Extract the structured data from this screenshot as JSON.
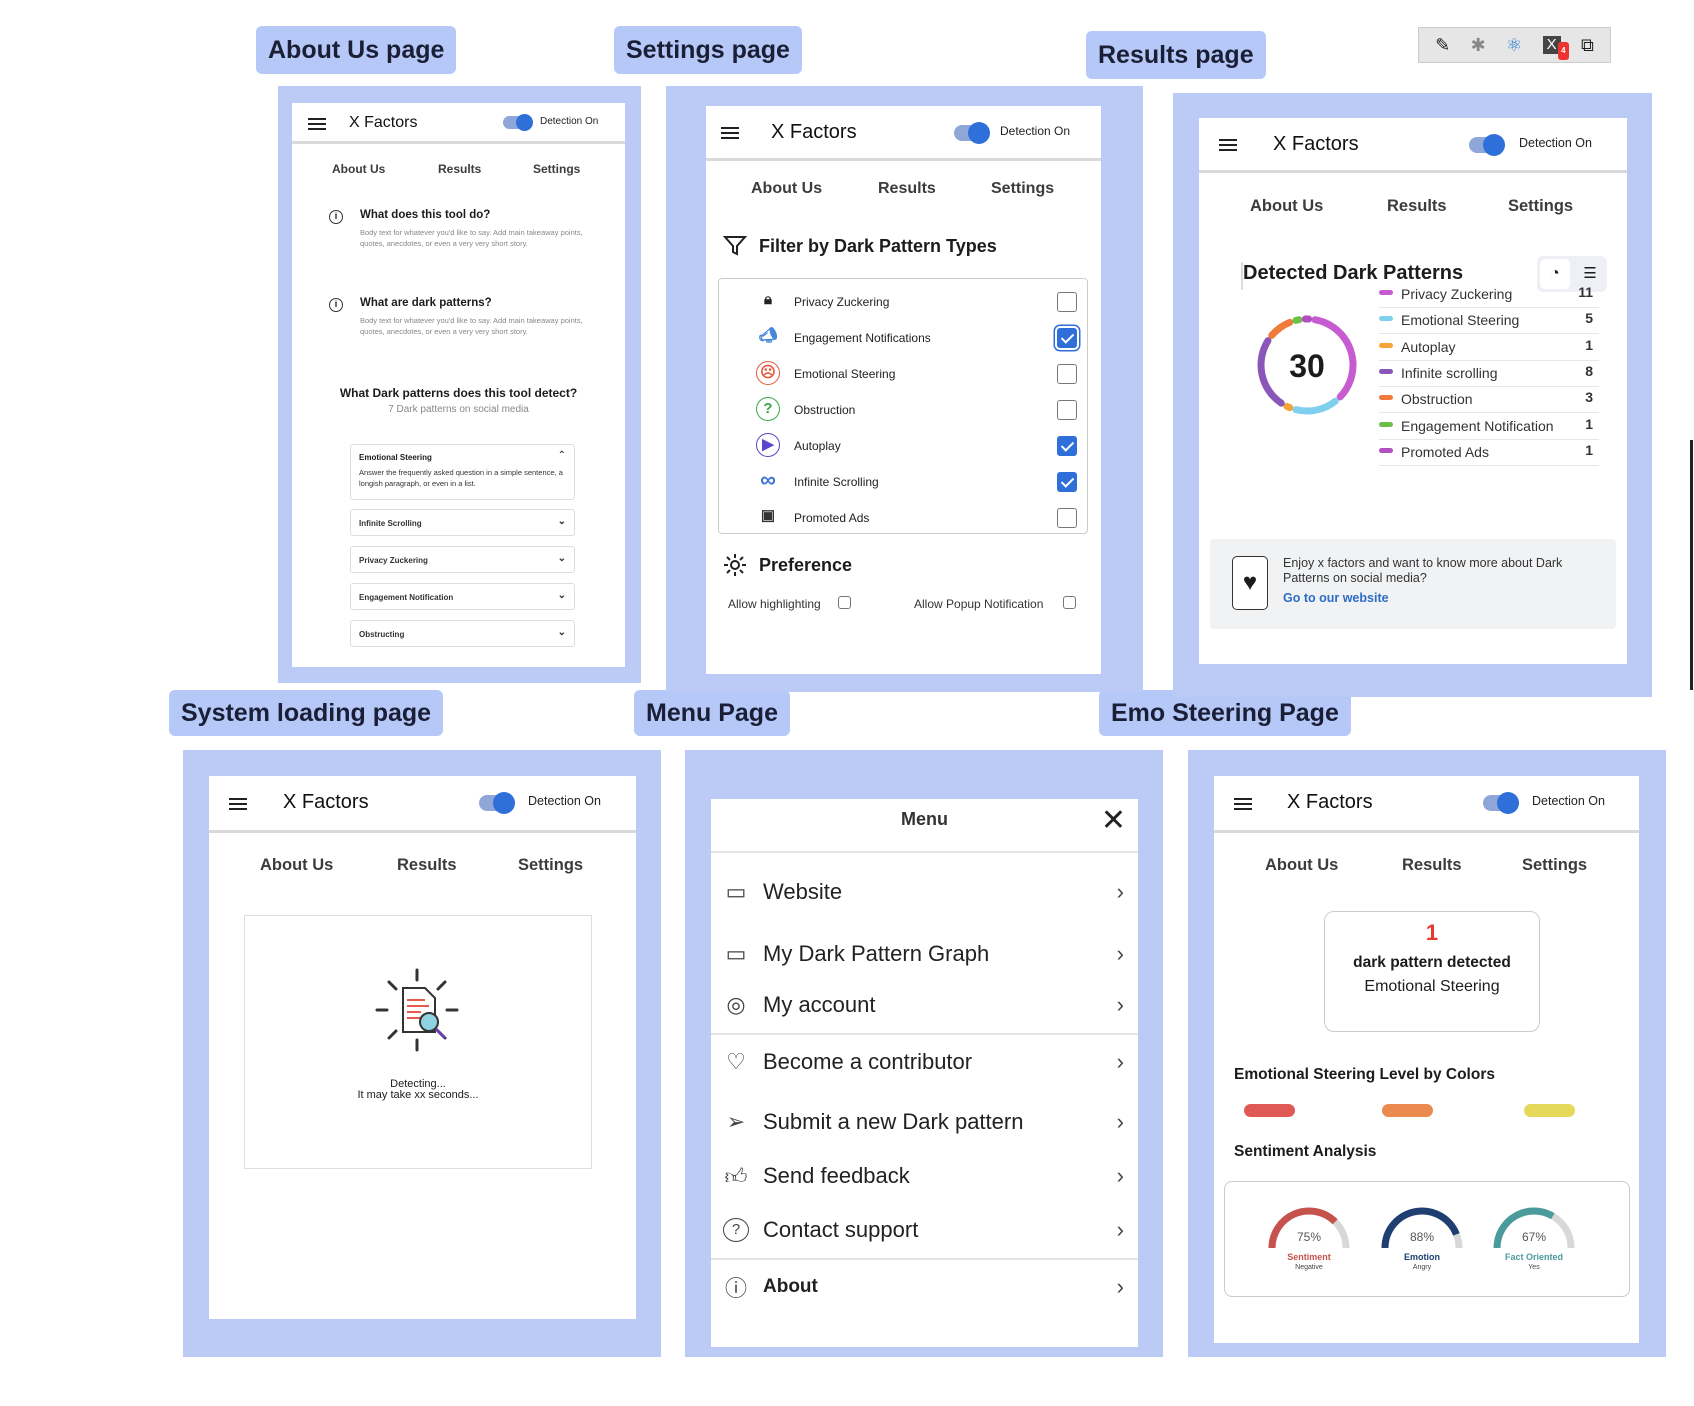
{
  "titles": {
    "about": "About Us page",
    "settings": "Settings page",
    "results": "Results page",
    "loading": "System loading page",
    "menu": "Menu Page",
    "emo": "Emo Steering Page"
  },
  "app": {
    "name": "X Factors",
    "detection": "Detection On",
    "nav_about": "About Us",
    "nav_results": "Results",
    "nav_settings": "Settings"
  },
  "about": {
    "q1": "What does this tool do?",
    "q2": "What are dark patterns?",
    "body": "Body text for whatever you'd like to say. Add main takeaway points, quotes, anecdotes, or even a very very short story.",
    "detect_title": "What Dark patterns does this tool detect?",
    "detect_sub": "7 Dark patterns on social media",
    "acc_open_title": "Emotional Steering",
    "acc_open_body": "Answer the frequently asked question in a simple sentence, a longish paragraph, or even in a list.",
    "acc": [
      "Infinite Scrolling",
      "Privacy Zuckering",
      "Engagement Notification",
      "Obstructing"
    ]
  },
  "settings": {
    "filter_title": "Filter by Dark Pattern Types",
    "items": [
      {
        "label": "Privacy Zuckering",
        "checked": false,
        "icon": "lock-icon"
      },
      {
        "label": "Engagement Notifications",
        "checked": true,
        "icon": "megaphone-icon"
      },
      {
        "label": "Emotional Steering",
        "checked": false,
        "icon": "sad-face-icon"
      },
      {
        "label": "Obstruction",
        "checked": false,
        "icon": "question-icon"
      },
      {
        "label": "Autoplay",
        "checked": true,
        "icon": "play-icon"
      },
      {
        "label": "Infinite Scrolling",
        "checked": true,
        "icon": "infinity-icon"
      },
      {
        "label": "Promoted Ads",
        "checked": false,
        "icon": "ads-icon"
      }
    ],
    "pref_title": "Preference",
    "allow_highlight": "Allow highlighting",
    "allow_popup": "Allow Popup Notification"
  },
  "results": {
    "title": "Detected Dark Patterns",
    "total": "30",
    "legend": [
      {
        "label": "Privacy Zuckering",
        "value": 11,
        "color": "#c75bd0"
      },
      {
        "label": "Emotional Steering",
        "value": 5,
        "color": "#7fd0ee"
      },
      {
        "label": "Autoplay",
        "value": 1,
        "color": "#f3a53a"
      },
      {
        "label": "Infinite scrolling",
        "value": 8,
        "color": "#8a56b8"
      },
      {
        "label": "Obstruction",
        "value": 3,
        "color": "#ef7b3b"
      },
      {
        "label": "Engagement Notification",
        "value": 1,
        "color": "#6cc04a"
      },
      {
        "label": "Promoted Ads",
        "value": 1,
        "color": "#b14fc0"
      }
    ],
    "promo_text": "Enjoy x factors and want to know more about Dark Patterns on social media?",
    "promo_link": "Go to our website"
  },
  "loading": {
    "line1": "Detecting...",
    "line2": "It may take xx seconds..."
  },
  "menu": {
    "title": "Menu",
    "items": [
      {
        "label": "Website",
        "icon": "browser-window-icon"
      },
      {
        "label": "My Dark Pattern Graph",
        "icon": "rectangle-icon"
      },
      {
        "label": "My account",
        "icon": "user-circle-icon"
      },
      {
        "label": "Become a contributor",
        "icon": "heart-icon"
      },
      {
        "label": "Submit a new Dark pattern",
        "icon": "send-icon"
      },
      {
        "label": "Send feedback",
        "icon": "thumbs-up-icon"
      },
      {
        "label": "Contact support",
        "icon": "help-circle-icon"
      },
      {
        "label": "About",
        "icon": "info-message-icon"
      }
    ]
  },
  "emo": {
    "count": "1",
    "detected": "dark pattern detected",
    "type": "Emotional Steering",
    "level_title": "Emotional Steering Level by Colors",
    "levels": [
      "#e05a55",
      "#ea8a4f",
      "#e6d85a"
    ],
    "sentiment_title": "Sentiment Analysis",
    "gauges": [
      {
        "pct": 75,
        "label": "75%",
        "name": "Sentiment",
        "sub": "Negative",
        "color": "#c5524c"
      },
      {
        "pct": 88,
        "label": "88%",
        "name": "Emotion",
        "sub": "Angry",
        "color": "#1f3f72"
      },
      {
        "pct": 67,
        "label": "67%",
        "name": "Fact Oriented",
        "sub": "Yes",
        "color": "#4b9b9c"
      }
    ]
  }
}
